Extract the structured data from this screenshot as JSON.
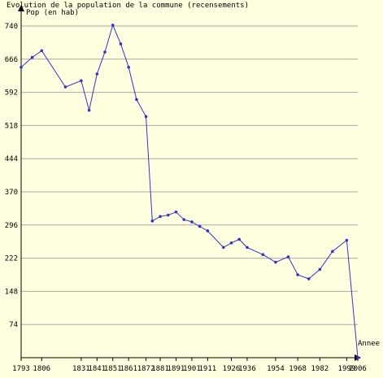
{
  "chart_data": {
    "type": "line",
    "title": "Evolution de la population de la commune (recensements)",
    "ylabel": "Pop (en hab)",
    "xlabel": "Annee",
    "ylim": [
      0,
      740
    ],
    "yticks": [
      74,
      148,
      222,
      296,
      370,
      444,
      518,
      592,
      666,
      740
    ],
    "xtick_labels": [
      "1793",
      "1806",
      "1831",
      "1841",
      "1851",
      "1861",
      "1872",
      "1881",
      "1891",
      "1901",
      "1911",
      "1926",
      "1936",
      "1954",
      "1968",
      "1982",
      "1999",
      "2006"
    ],
    "grid": true,
    "colors": {
      "line": "#3333cc",
      "grid": "#a8a8a8",
      "axis": "#000000",
      "background": "#ffffe0"
    },
    "series": [
      {
        "x": [
          1793,
          1800,
          1806,
          1821,
          1831,
          1836,
          1841,
          1846,
          1851,
          1856,
          1861,
          1866,
          1872,
          1876,
          1881,
          1886,
          1891,
          1896,
          1901,
          1906,
          1911,
          1921,
          1926,
          1931,
          1936,
          1946,
          1954,
          1962,
          1968,
          1975,
          1982,
          1990,
          1999,
          2006
        ],
        "y": [
          648,
          670,
          685,
          604,
          618,
          552,
          633,
          682,
          742,
          700,
          648,
          576,
          538,
          305,
          315,
          318,
          325,
          308,
          303,
          293,
          283,
          246,
          256,
          264,
          246,
          230,
          213,
          225,
          185,
          176,
          197,
          237,
          262,
          0
        ]
      }
    ]
  }
}
